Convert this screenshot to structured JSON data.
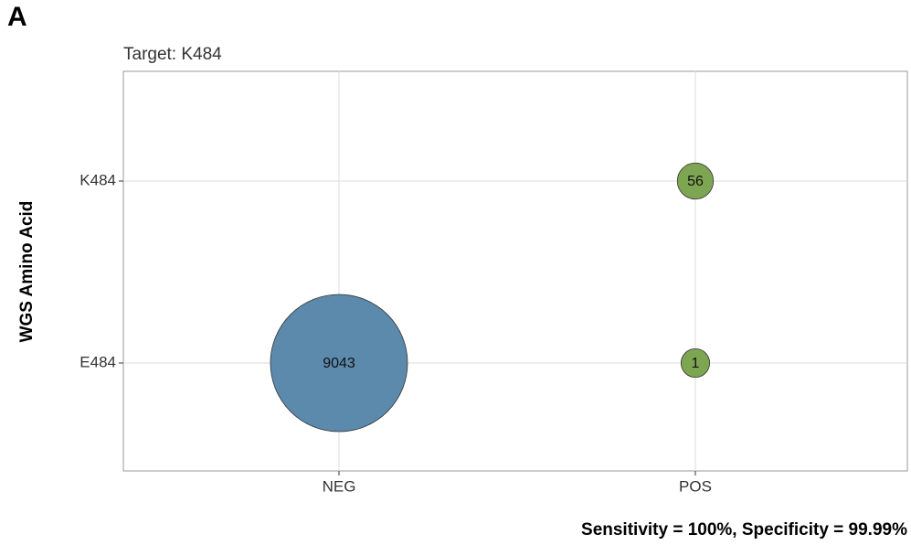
{
  "panel_label": "A",
  "chart_data": {
    "type": "bubble",
    "title": "Target: K484",
    "y_label": "WGS Amino Acid",
    "x_categories": [
      "NEG",
      "POS"
    ],
    "y_categories": [
      "E484",
      "K484"
    ],
    "points": [
      {
        "x": "NEG",
        "y": "E484",
        "value": 9043,
        "color": "#5b8aad"
      },
      {
        "x": "POS",
        "y": "K484",
        "value": 56,
        "color": "#7ea552"
      },
      {
        "x": "POS",
        "y": "E484",
        "value": 1,
        "color": "#7ea552"
      }
    ],
    "grid": true
  },
  "footer": "Sensitivity = 100%, Specificity = 99.99%"
}
